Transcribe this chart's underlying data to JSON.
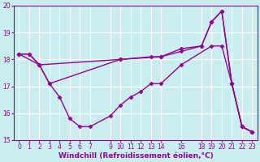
{
  "xlabel": "Windchill (Refroidissement éolien,°C)",
  "bg_color": "#c8eef0",
  "line_color": "#990099",
  "xlim": [
    -0.5,
    23.5
  ],
  "ylim": [
    15,
    20
  ],
  "xticks": [
    0,
    1,
    2,
    3,
    4,
    5,
    6,
    7,
    9,
    10,
    11,
    12,
    13,
    14,
    16,
    18,
    19,
    20,
    21,
    22,
    23
  ],
  "yticks": [
    15,
    16,
    17,
    18,
    19,
    20
  ],
  "grid_color": "#ffffff",
  "curve1_x": [
    0,
    1,
    2,
    3,
    4,
    5,
    6,
    7,
    9,
    10,
    11,
    12,
    13,
    14,
    16,
    19,
    20,
    21,
    22,
    23
  ],
  "curve1_y": [
    18.2,
    18.2,
    17.8,
    17.1,
    16.6,
    15.8,
    15.5,
    15.5,
    15.9,
    16.3,
    16.6,
    16.8,
    17.1,
    17.1,
    17.8,
    18.5,
    18.5,
    17.1,
    15.5,
    15.3
  ],
  "curve2_x": [
    0,
    2,
    3,
    10,
    14,
    16,
    18,
    19,
    20,
    21,
    22,
    23
  ],
  "curve2_y": [
    18.2,
    17.8,
    17.1,
    18.0,
    18.1,
    18.3,
    18.5,
    19.4,
    19.8,
    17.1,
    15.5,
    15.3
  ],
  "curve3_x": [
    0,
    1,
    2,
    10,
    13,
    14,
    16,
    18,
    19,
    20,
    21,
    22,
    23
  ],
  "curve3_y": [
    18.2,
    18.2,
    17.8,
    18.0,
    18.1,
    18.1,
    18.4,
    18.5,
    19.4,
    19.8,
    17.1,
    15.5,
    15.3
  ],
  "marker": "D",
  "markersize": 2.5,
  "linewidth": 1.0,
  "tick_fontsize": 5.5,
  "xlabel_fontsize": 6.5
}
